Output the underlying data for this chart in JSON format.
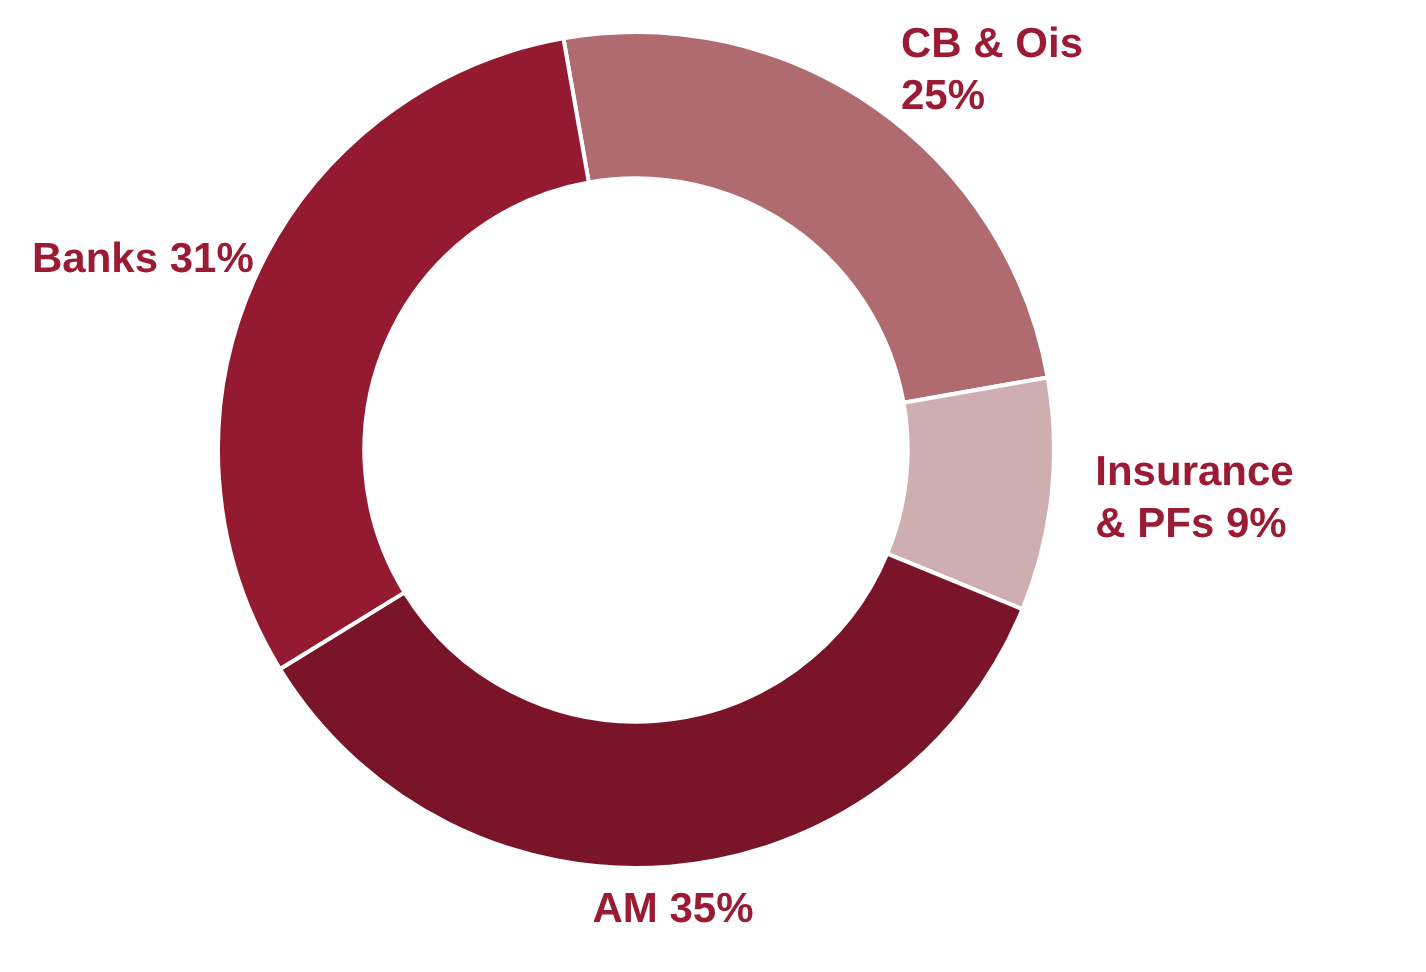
{
  "chart_data": {
    "type": "donut",
    "categories": [
      "CB & Ois",
      "Insurance & PFs",
      "AM",
      "Banks"
    ],
    "values": [
      25,
      9,
      35,
      31
    ],
    "value_labels": [
      "25%",
      "9%",
      "35%",
      "31%"
    ],
    "colors": [
      "#b06b70",
      "#cfaeb1",
      "#7a1428",
      "#931a30"
    ],
    "legend": false
  }
}
